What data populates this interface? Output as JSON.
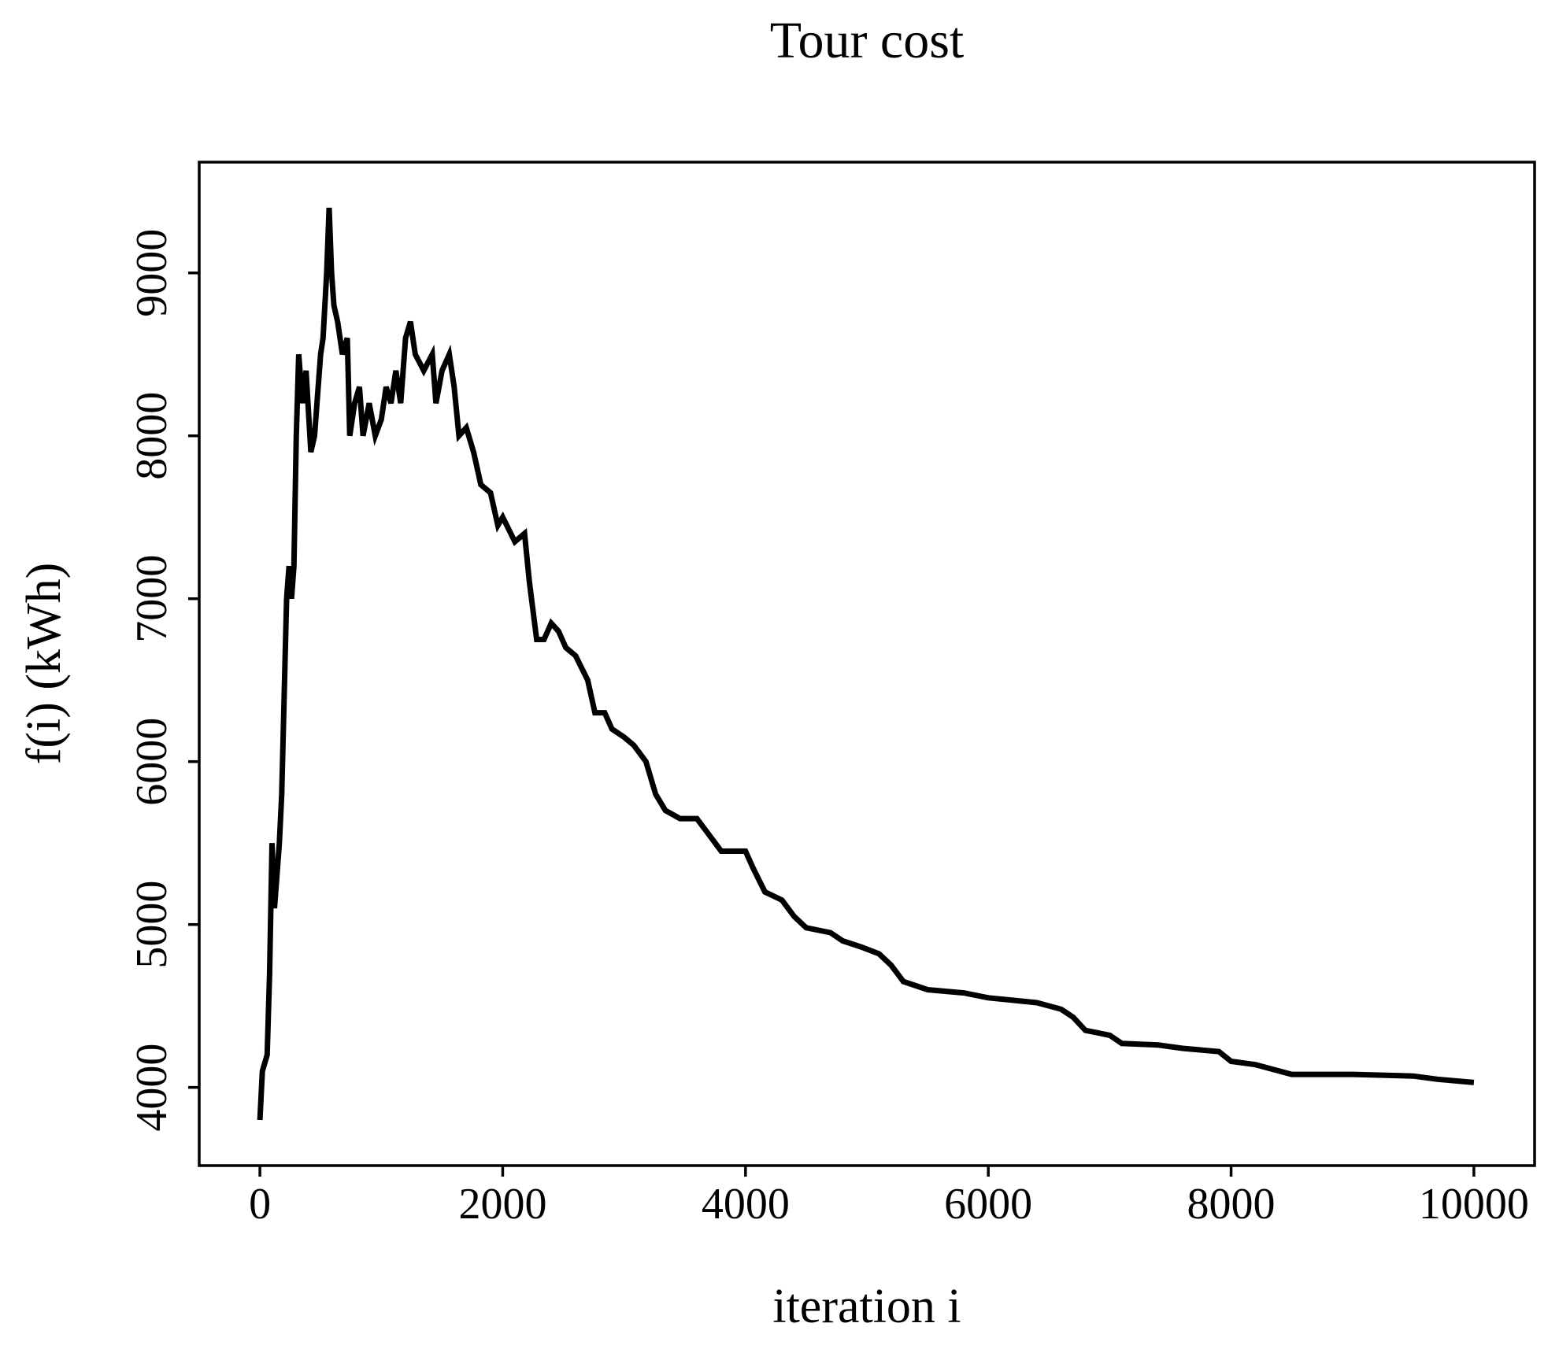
{
  "chart_data": {
    "type": "line",
    "title": "Tour cost",
    "x_label": "iteration i",
    "y_label": "f(i)  (kWh)",
    "x": [
      0,
      20,
      60,
      80,
      100,
      120,
      160,
      180,
      200,
      220,
      240,
      260,
      280,
      300,
      320,
      350,
      380,
      420,
      450,
      480,
      500,
      520,
      550,
      570,
      590,
      610,
      640,
      680,
      720,
      740,
      780,
      820,
      850,
      900,
      950,
      1000,
      1040,
      1080,
      1120,
      1160,
      1200,
      1240,
      1280,
      1350,
      1420,
      1450,
      1500,
      1560,
      1600,
      1640,
      1700,
      1760,
      1820,
      1900,
      1960,
      2000,
      2100,
      2180,
      2220,
      2280,
      2340,
      2400,
      2460,
      2520,
      2600,
      2700,
      2760,
      2840,
      2900,
      3000,
      3080,
      3180,
      3260,
      3340,
      3460,
      3600,
      3700,
      3800,
      4000,
      4060,
      4160,
      4300,
      4400,
      4500,
      4700,
      4800,
      4960,
      5100,
      5200,
      5300,
      5500,
      5800,
      6000,
      6400,
      6600,
      6700,
      6800,
      7000,
      7100,
      7400,
      7600,
      7900,
      8000,
      8200,
      8500,
      9000,
      9500,
      9700,
      10000
    ],
    "series": [
      {
        "name": "f(i)",
        "color": "#000000",
        "values": [
          3800,
          4100,
          4200,
          4700,
          5500,
          5100,
          5500,
          5800,
          6400,
          7000,
          7200,
          7000,
          7200,
          8000,
          8500,
          8200,
          8400,
          7900,
          8000,
          8300,
          8500,
          8600,
          9000,
          9400,
          9000,
          8800,
          8700,
          8500,
          8600,
          8000,
          8200,
          8300,
          8000,
          8200,
          8000,
          8100,
          8300,
          8200,
          8400,
          8200,
          8600,
          8700,
          8500,
          8400,
          8500,
          8200,
          8400,
          8500,
          8300,
          8000,
          8050,
          7900,
          7700,
          7650,
          7450,
          7500,
          7350,
          7400,
          7100,
          6750,
          6750,
          6850,
          6800,
          6700,
          6650,
          6500,
          6300,
          6300,
          6200,
          6150,
          6100,
          6000,
          5800,
          5700,
          5650,
          5650,
          5550,
          5450,
          5450,
          5350,
          5200,
          5150,
          5050,
          4980,
          4950,
          4900,
          4860,
          4820,
          4750,
          4650,
          4600,
          4580,
          4550,
          4520,
          4480,
          4430,
          4350,
          4320,
          4270,
          4260,
          4240,
          4220,
          4160,
          4140,
          4080,
          4080,
          4070,
          4050,
          4030
        ]
      }
    ],
    "xlim": [
      -500,
      10500
    ],
    "ylim": [
      3520,
      9680
    ],
    "xticks": [
      0,
      2000,
      4000,
      6000,
      8000,
      10000
    ],
    "yticks": [
      4000,
      5000,
      6000,
      7000,
      8000,
      9000
    ]
  }
}
